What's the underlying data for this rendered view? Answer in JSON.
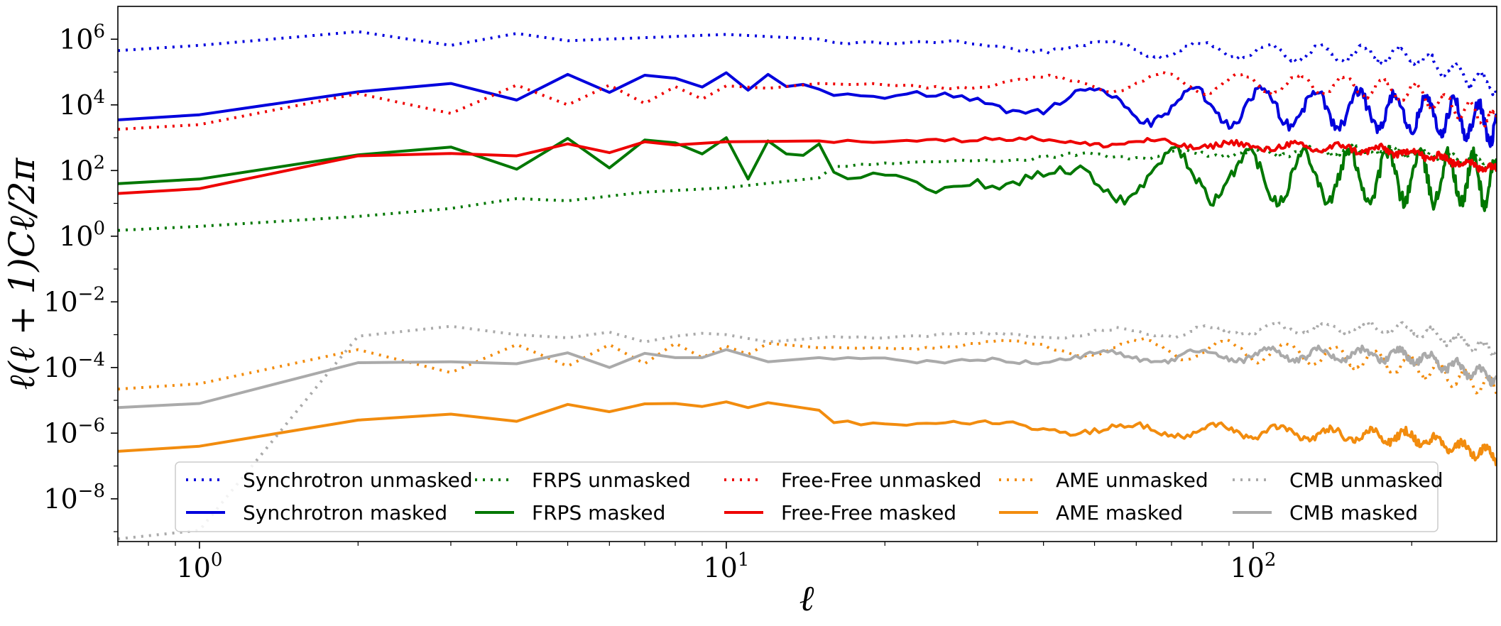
{
  "chart_data": {
    "type": "line",
    "xscale": "log",
    "yscale": "log",
    "xlim": [
      0.7,
      290
    ],
    "ylim": [
      5e-10,
      10000000.0
    ],
    "xlabel": "ℓ",
    "ylabel": "ℓ(ℓ + 1)Cℓ/2π",
    "x_tick_labels": [
      {
        "value": 1,
        "base": "10",
        "exp": "0"
      },
      {
        "value": 10,
        "base": "10",
        "exp": "1"
      },
      {
        "value": 100,
        "base": "10",
        "exp": "2"
      }
    ],
    "y_tick_labels": [
      {
        "value": 1000000.0,
        "base": "10",
        "exp": "6"
      },
      {
        "value": 10000.0,
        "base": "10",
        "exp": "4"
      },
      {
        "value": 100.0,
        "base": "10",
        "exp": "2"
      },
      {
        "value": 1.0,
        "base": "10",
        "exp": "0"
      },
      {
        "value": 0.01,
        "base": "10",
        "exp": "−2"
      },
      {
        "value": 0.0001,
        "base": "10",
        "exp": "−4"
      },
      {
        "value": 1e-06,
        "base": "10",
        "exp": "−6"
      },
      {
        "value": 1e-08,
        "base": "10",
        "exp": "−8"
      }
    ],
    "legend": {
      "placement": "lower-center",
      "ncol": 5
    },
    "series": [
      {
        "name": "Synchrotron unmasked",
        "color": "#0000dd",
        "style": "dotted",
        "level": 650000,
        "mod": 0.24,
        "noiseBase": 0.05,
        "noiseSlope": 0.02,
        "tail": 1.3,
        "xpts": [
          0.7,
          1,
          2,
          3,
          4,
          5,
          10,
          20,
          50,
          100,
          200,
          290
        ],
        "ypts": [
          450000,
          650000,
          1700000,
          650000,
          1500000,
          900000,
          1400000,
          800000,
          500000,
          300000,
          170000,
          30000
        ]
      },
      {
        "name": "Synchrotron masked",
        "color": "#0000dd",
        "style": "solid",
        "level": 20000,
        "mod": 0.55,
        "noiseBase": 0.06,
        "noiseSlope": 0.12,
        "tail": 0.6,
        "xpts": [
          0.7,
          1,
          2,
          3,
          4,
          5,
          6,
          7,
          8,
          9,
          10,
          11,
          12,
          13,
          14,
          15,
          20,
          30,
          40,
          50,
          70,
          100,
          150,
          200,
          290
        ],
        "ypts": [
          3500,
          5000,
          25000,
          45000,
          14000,
          85000,
          24000,
          80000,
          65000,
          35000,
          95000,
          28000,
          85000,
          36000,
          42000,
          30000,
          10000,
          15000,
          6000,
          9000,
          4500,
          4000,
          3500,
          2500,
          1400
        ]
      },
      {
        "name": "FRPS unmasked",
        "color": "#007700",
        "style": "dotted",
        "level": 300,
        "mod": 0.1,
        "noiseBase": 0.03,
        "noiseSlope": 0.05,
        "tail": 0.8,
        "xpts": [
          0.7,
          1,
          2,
          3,
          4,
          5,
          7,
          10,
          15,
          20,
          30,
          50,
          100,
          150,
          290
        ],
        "ypts": [
          1.5,
          2,
          4,
          7,
          14,
          12,
          22,
          30,
          60,
          90,
          180,
          250,
          380,
          520,
          350
        ]
      },
      {
        "name": "FRPS masked",
        "color": "#007700",
        "style": "solid",
        "level": 80,
        "mod": 0.75,
        "noiseBase": 0.1,
        "noiseSlope": 0.12,
        "tail": 0.4,
        "xpts": [
          0.7,
          1,
          2,
          3,
          4,
          5,
          6,
          7,
          8,
          9,
          10,
          11,
          12,
          13,
          14,
          15,
          17,
          20,
          25,
          30,
          40,
          45,
          50,
          70,
          100,
          200,
          290
        ],
        "ypts": [
          40,
          55,
          300,
          520,
          110,
          950,
          120,
          850,
          700,
          320,
          1000,
          55,
          800,
          320,
          290,
          650,
          25,
          60,
          18,
          100,
          20,
          15,
          40,
          70,
          60,
          60,
          55
        ]
      },
      {
        "name": "Free-Free unmasked",
        "color": "#ee0000",
        "style": "dotted",
        "level": 40000,
        "mod": 0.3,
        "noiseBase": 0.03,
        "noiseSlope": 0.03,
        "tail": 1.0,
        "xpts": [
          0.7,
          1,
          2,
          3,
          4,
          5,
          6,
          7,
          8,
          9,
          10,
          12,
          15,
          20,
          30,
          50,
          100,
          150,
          200,
          290
        ],
        "ypts": [
          1800,
          2500,
          22000,
          5500,
          40000,
          10000,
          40000,
          11000,
          36000,
          15000,
          38000,
          32000,
          45000,
          40000,
          48000,
          55000,
          48000,
          36000,
          18000,
          2000
        ]
      },
      {
        "name": "Free-Free masked",
        "color": "#ee0000",
        "style": "solid",
        "level": 700,
        "mod": 0.1,
        "noiseBase": 0.04,
        "noiseSlope": 0.06,
        "tail": 0.8,
        "xpts": [
          0.7,
          1,
          2,
          3,
          4,
          5,
          6,
          7,
          8,
          10,
          15,
          20,
          30,
          40,
          50,
          70,
          100,
          150,
          200,
          290
        ],
        "ypts": [
          20,
          28,
          280,
          330,
          280,
          650,
          350,
          750,
          600,
          750,
          800,
          950,
          1100,
          900,
          750,
          600,
          450,
          350,
          200,
          90
        ]
      },
      {
        "name": "AME unmasked",
        "color": "#f28c0e",
        "style": "dotted",
        "level": 0.0004,
        "mod": 0.3,
        "noiseBase": 0.03,
        "noiseSlope": 0.03,
        "tail": 0.8,
        "xpts": [
          0.7,
          1,
          2,
          3,
          4,
          5,
          6,
          7,
          8,
          9,
          10,
          11,
          12,
          15,
          20,
          30,
          50,
          100,
          150,
          200,
          290
        ],
        "ypts": [
          2.2e-05,
          3.2e-05,
          0.00035,
          7e-05,
          0.0005,
          0.00011,
          0.0005,
          0.00013,
          0.00055,
          0.0002,
          0.00045,
          0.00025,
          0.00055,
          0.0004,
          0.0005,
          0.0005,
          0.0004,
          0.00025,
          0.00012,
          4e-05,
          9e-06
        ]
      },
      {
        "name": "AME masked",
        "color": "#f28c0e",
        "style": "solid",
        "level": 1e-06,
        "mod": 0.18,
        "noiseBase": 0.05,
        "noiseSlope": 0.06,
        "tail": 0.8,
        "xpts": [
          0.7,
          1,
          2,
          3,
          4,
          5,
          6,
          7,
          8,
          9,
          10,
          11,
          12,
          15,
          20,
          30,
          50,
          100,
          200,
          290
        ],
        "ypts": [
          2.8e-07,
          4e-07,
          2.5e-06,
          3.8e-06,
          2.3e-06,
          7.5e-06,
          4.5e-06,
          7.8e-06,
          8e-06,
          6.5e-06,
          9e-06,
          6e-06,
          8.5e-06,
          5e-06,
          3.5e-06,
          3e-06,
          1.6e-06,
          1.3e-06,
          6e-07,
          2.2e-07
        ]
      },
      {
        "name": "CMB unmasked",
        "color": "#aaaaaa",
        "style": "dotted",
        "level": 0.001,
        "mod": 0.16,
        "noiseBase": 0.03,
        "noiseSlope": 0.04,
        "tail": 0.8,
        "xpts": [
          0.7,
          1,
          1.3,
          2,
          3,
          4,
          5,
          6,
          7,
          8,
          9,
          10,
          12,
          15,
          20,
          30,
          50,
          100,
          150,
          200,
          290
        ],
        "ypts": [
          6e-10,
          1.1e-09,
          5e-08,
          0.0009,
          0.0018,
          0.001,
          0.0008,
          0.0012,
          0.0006,
          0.0009,
          0.0011,
          0.001,
          0.0006,
          0.0008,
          0.0007,
          0.0009,
          0.0012,
          0.0018,
          0.0025,
          0.002,
          0.0005
        ]
      },
      {
        "name": "CMB masked",
        "color": "#aaaaaa",
        "style": "solid",
        "level": 0.0002,
        "mod": 0.18,
        "noiseBase": 0.04,
        "noiseSlope": 0.06,
        "tail": 0.8,
        "xpts": [
          0.7,
          1,
          2,
          3,
          4,
          5,
          6,
          7,
          8,
          9,
          10,
          12,
          15,
          20,
          25,
          30,
          50,
          100,
          150,
          200,
          290
        ],
        "ypts": [
          6e-06,
          8e-06,
          0.00014,
          0.00015,
          0.00013,
          0.00028,
          0.0001,
          0.00027,
          0.0002,
          0.0002,
          0.00035,
          0.00015,
          0.0002,
          0.00015,
          8e-05,
          0.00015,
          0.0002,
          0.00028,
          0.0003,
          0.00025,
          6e-05
        ]
      }
    ]
  }
}
